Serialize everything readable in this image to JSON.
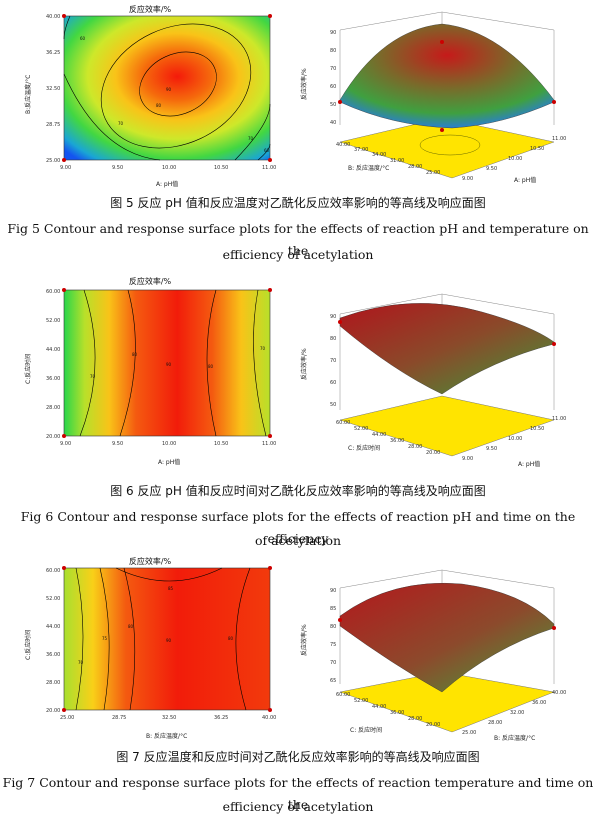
{
  "figures": [
    {
      "contour": {
        "title": "反应效率/%",
        "xlabel": "A: pH值",
        "ylabel": "B:反应温度/°C",
        "xticks": [
          "9.00",
          "9.50",
          "10.00",
          "10.50",
          "11.00"
        ],
        "yticks": [
          "25.00",
          "28.75",
          "32.50",
          "36.25",
          "40.00"
        ],
        "contour_labels": [
          "60",
          "70",
          "80",
          "80",
          "70",
          "60"
        ],
        "center_label": "90"
      },
      "surface": {
        "zlabel": "反应效率/%",
        "xlabel": "A: pH值",
        "ylabel": "B: 反应温度/°C",
        "zticks": [
          "90",
          "80",
          "70",
          "60",
          "50",
          "40"
        ],
        "xticks": [
          "9.00",
          "9.50",
          "10.00",
          "10.50",
          "11.00"
        ],
        "yticks": [
          "25.00",
          "28.00",
          "31.00",
          "34.00",
          "37.00",
          "40.00"
        ]
      },
      "caption_cn": "图 5  反应 pH 值和反应温度对乙酰化反应效率影响的等高线及响应面图",
      "caption_en_1": "Fig 5 Contour and response surface plots for the effects of reaction pH and temperature on the",
      "caption_en_2": "efficiency of acetylation"
    },
    {
      "contour": {
        "title": "反应效率/%",
        "xlabel": "A: pH值",
        "ylabel": "C:反应时间",
        "xticks": [
          "9.00",
          "9.50",
          "10.00",
          "10.50",
          "11.00"
        ],
        "yticks": [
          "20.00",
          "28.00",
          "36.00",
          "44.00",
          "52.00",
          "60.00"
        ],
        "contour_labels": [
          "70",
          "80",
          "80",
          "70"
        ],
        "center_label": "90"
      },
      "surface": {
        "zlabel": "反应效率/%",
        "xlabel": "A: pH值",
        "ylabel": "C: 反应时间",
        "zticks": [
          "90",
          "80",
          "70",
          "60",
          "50"
        ],
        "xticks": [
          "9.00",
          "9.50",
          "10.00",
          "10.50",
          "11.00"
        ],
        "yticks": [
          "20.00",
          "28.00",
          "36.00",
          "44.00",
          "52.00",
          "60.00"
        ]
      },
      "caption_cn": "图 6  反应 pH 值和反应时间对乙酰化反应效率影响的等高线及响应面图",
      "caption_en_1": "Fig 6 Contour and response surface plots for the effects of reaction pH and time on the efficiency",
      "caption_en_2": "of acetylation"
    },
    {
      "contour": {
        "title": "反应效率/%",
        "xlabel": "B: 反应温度/°C",
        "ylabel": "C:反应时间",
        "xticks": [
          "25.00",
          "28.75",
          "32.50",
          "36.25",
          "40.00"
        ],
        "yticks": [
          "20.00",
          "28.00",
          "36.00",
          "44.00",
          "52.00",
          "60.00"
        ],
        "contour_labels": [
          "70",
          "75",
          "80",
          "85",
          "80"
        ],
        "center_label": "90"
      },
      "surface": {
        "zlabel": "反应效率/%",
        "xlabel": "B: 反应温度/°C",
        "ylabel": "C: 反应时间",
        "zticks": [
          "90",
          "85",
          "80",
          "75",
          "70",
          "65"
        ],
        "xticks": [
          "25.00",
          "28.00",
          "32.00",
          "36.00",
          "40.00"
        ],
        "yticks": [
          "20.00",
          "28.00",
          "36.00",
          "44.00",
          "52.00",
          "60.00"
        ]
      },
      "caption_cn": "图 7  反应温度和反应时间对乙酰化反应效率影响的等高线及响应面图",
      "caption_en_1": "Fig 7 Contour and response surface plots for the effects of reaction temperature and time on the",
      "caption_en_2": "efficiency of acetylation"
    }
  ]
}
